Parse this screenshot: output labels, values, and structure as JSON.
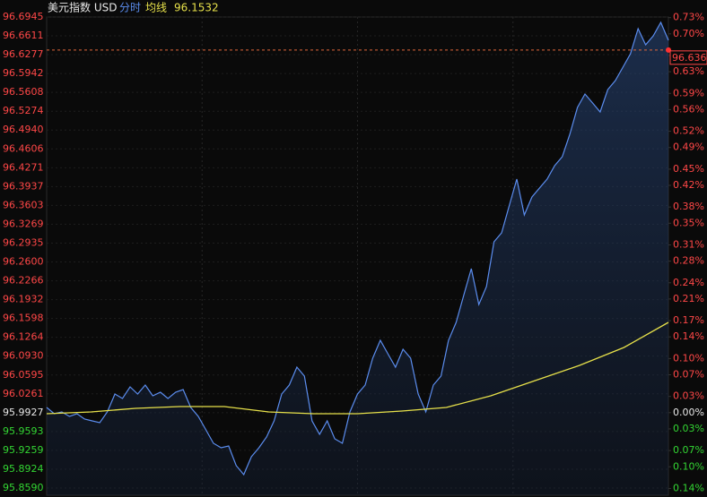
{
  "chart_data": {
    "type": "line",
    "title": "美元指数 USD",
    "legend_value": 96.1532,
    "base": 95.9927,
    "up_color": "#ff4747",
    "down_color": "#33d633",
    "flat_color": "#e8e8e8",
    "grid": true,
    "price_tag": 96.636,
    "ylim": [
      95.859,
      96.6945
    ],
    "yticks": [
      96.6945,
      96.6611,
      96.6277,
      96.5942,
      96.5608,
      96.5274,
      {
        "value": 96.494,
        "label": "96.4940"
      },
      96.4606,
      96.4271,
      96.3937,
      96.3603,
      96.3269,
      96.2935,
      {
        "value": 96.26,
        "label": "96.2600"
      },
      96.2266,
      96.1932,
      96.1598,
      96.1264,
      {
        "value": 96.093,
        "label": "96.0930"
      },
      96.0595,
      96.0261,
      95.9927,
      95.9593,
      95.9259,
      95.8924,
      {
        "value": 95.859,
        "label": "95.8590"
      }
    ],
    "y2lim": [
      -0.1393,
      0.7311
    ],
    "y2ticks": [
      {
        "value": 0.73,
        "label": "0.73%"
      },
      {
        "value": 0.7,
        "label": "0.70%"
      },
      {
        "value": 0.66,
        "label": "0.66%"
      },
      {
        "value": 0.63,
        "label": "0.63%"
      },
      {
        "value": 0.59,
        "label": "0.59%"
      },
      {
        "value": 0.56,
        "label": "0.56%"
      },
      {
        "value": 0.52,
        "label": "0.52%"
      },
      {
        "value": 0.49,
        "label": "0.49%"
      },
      {
        "value": 0.45,
        "label": "0.45%"
      },
      {
        "value": 0.42,
        "label": "0.42%"
      },
      {
        "value": 0.38,
        "label": "0.38%"
      },
      {
        "value": 0.35,
        "label": "0.35%"
      },
      {
        "value": 0.31,
        "label": "0.31%"
      },
      {
        "value": 0.28,
        "label": "0.28%"
      },
      {
        "value": 0.24,
        "label": "0.24%"
      },
      {
        "value": 0.21,
        "label": "0.21%"
      },
      {
        "value": 0.17,
        "label": "0.17%"
      },
      {
        "value": 0.14,
        "label": "0.14%"
      },
      {
        "value": 0.1,
        "label": "0.10%"
      },
      {
        "value": 0.07,
        "label": "0.07%"
      },
      {
        "value": 0.03,
        "label": "0.03%"
      },
      {
        "value": 0,
        "label": "0.00%"
      },
      {
        "value": -0.03,
        "label": "0.03%"
      },
      {
        "value": -0.07,
        "label": "0.07%"
      },
      {
        "value": -0.1,
        "label": "0.10%"
      },
      {
        "value": -0.14,
        "label": "0.14%"
      }
    ],
    "series": [
      {
        "name": "分时",
        "color": "#5b8def",
        "values": [
          96.002,
          95.9908,
          95.994,
          95.9861,
          95.9908,
          95.9813,
          95.9781,
          95.975,
          95.994,
          96.0258,
          96.0178,
          96.0385,
          96.0258,
          96.0417,
          96.0226,
          96.029,
          96.0178,
          96.029,
          96.0337,
          96.002,
          95.9861,
          95.9622,
          95.9384,
          95.9305,
          95.9337,
          95.8987,
          95.8828,
          95.9146,
          95.9305,
          95.9495,
          95.9781,
          96.0258,
          96.0417,
          96.0734,
          96.0576,
          95.9781,
          95.9543,
          95.9781,
          95.9464,
          95.9384,
          95.994,
          96.0258,
          96.0417,
          96.0893,
          96.1211,
          96.0973,
          96.0734,
          96.1052,
          96.0893,
          96.0258,
          95.994,
          96.0417,
          96.0576,
          96.1211,
          96.1529,
          96.2005,
          96.2482,
          96.1846,
          96.2164,
          96.2958,
          96.3117,
          96.3594,
          96.407,
          96.3435,
          96.3752,
          96.3911,
          96.407,
          96.4308,
          96.4467,
          96.4864,
          96.5341,
          96.5579,
          96.542,
          96.5261,
          96.5658,
          96.5817,
          96.6055,
          96.6294,
          96.6739,
          96.6453,
          96.6611,
          96.685,
          96.6532
        ]
      },
      {
        "name": "均线",
        "color": "#e6e04a",
        "values": [
          95.9908,
          95.994,
          96.0004,
          96.0035,
          96.0035,
          95.994,
          95.9908,
          95.9908,
          95.9956,
          96.002,
          96.0226,
          96.0496,
          96.0766,
          96.1084,
          96.1529
        ]
      }
    ]
  }
}
